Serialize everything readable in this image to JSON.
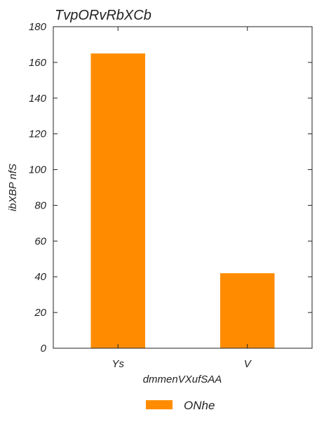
{
  "chart_data": {
    "type": "bar",
    "title": "TvpORvRbXCb",
    "xlabel": "dmmenVXufSAA",
    "ylabel": "ibXBP nfS",
    "categories": [
      "Ys",
      "V"
    ],
    "series": [
      {
        "name": "ONhe",
        "values": [
          165,
          42
        ],
        "color": "#ff8c00"
      }
    ],
    "ylim": [
      0,
      180
    ],
    "yticks": [
      0,
      20,
      40,
      60,
      80,
      100,
      120,
      140,
      160,
      180
    ],
    "grid": false,
    "legend": "bottom-center"
  }
}
